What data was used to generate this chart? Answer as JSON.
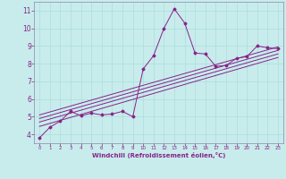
{
  "background_color": "#c8ecec",
  "plot_bg_color": "#c8ecec",
  "line_color": "#882288",
  "grid_color": "#aadddd",
  "xlabel": "Windchill (Refroidissement éolien,°C)",
  "xlim": [
    -0.5,
    23.5
  ],
  "ylim": [
    3.5,
    11.5
  ],
  "xticks": [
    0,
    1,
    2,
    3,
    4,
    5,
    6,
    7,
    8,
    9,
    10,
    11,
    12,
    13,
    14,
    15,
    16,
    17,
    18,
    19,
    20,
    21,
    22,
    23
  ],
  "yticks": [
    4,
    5,
    6,
    7,
    8,
    9,
    10,
    11
  ],
  "series": [
    [
      0,
      3.8
    ],
    [
      1,
      4.4
    ],
    [
      2,
      4.75
    ],
    [
      3,
      5.3
    ],
    [
      4,
      5.05
    ],
    [
      5,
      5.2
    ],
    [
      6,
      5.1
    ],
    [
      7,
      5.15
    ],
    [
      8,
      5.3
    ],
    [
      9,
      5.0
    ],
    [
      10,
      7.7
    ],
    [
      11,
      8.45
    ],
    [
      12,
      10.0
    ],
    [
      13,
      11.1
    ],
    [
      14,
      10.3
    ],
    [
      15,
      8.6
    ],
    [
      16,
      8.55
    ],
    [
      17,
      7.85
    ],
    [
      18,
      7.9
    ],
    [
      19,
      8.3
    ],
    [
      20,
      8.4
    ],
    [
      21,
      9.0
    ],
    [
      22,
      8.9
    ],
    [
      23,
      8.85
    ]
  ],
  "linear_series": [
    [
      [
        0,
        4.45
      ],
      [
        23,
        8.35
      ]
    ],
    [
      [
        0,
        4.7
      ],
      [
        23,
        8.55
      ]
    ],
    [
      [
        0,
        4.9
      ],
      [
        23,
        8.75
      ]
    ],
    [
      [
        0,
        5.1
      ],
      [
        23,
        8.95
      ]
    ]
  ]
}
